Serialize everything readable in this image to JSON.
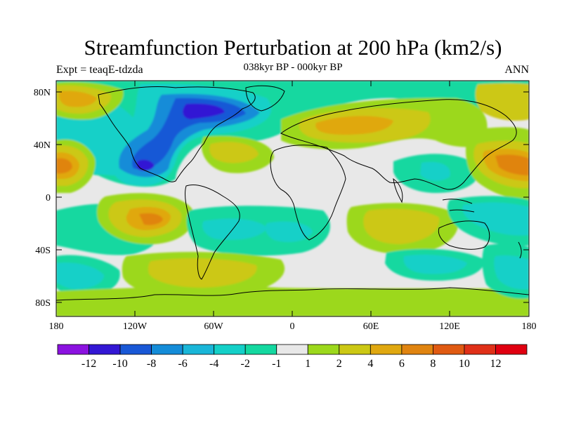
{
  "title": "Streamfunction Perturbation at 200 hPa (km2/s)",
  "left_label": "Expt = teaqE-tdzda",
  "center_label": "038kyr BP - 000kyr BP",
  "right_label": "ANN",
  "lat_ticks": [
    "80N",
    "40N",
    "0",
    "40S",
    "80S"
  ],
  "lon_ticks": [
    "180",
    "120W",
    "60W",
    "0",
    "60E",
    "120E",
    "180"
  ],
  "colorbar": {
    "labels": [
      "-12",
      "-10",
      "-8",
      "-6",
      "-4",
      "-2",
      "-1",
      "1",
      "2",
      "4",
      "6",
      "8",
      "10",
      "12"
    ],
    "colors": [
      "#8b12e0",
      "#3317d4",
      "#1958d6",
      "#148cd8",
      "#19b6d8",
      "#14d0c8",
      "#14d8a0",
      "#e8e8e8",
      "#9cd81c",
      "#ccc814",
      "#e0a810",
      "#e08410",
      "#e05a12",
      "#e03018",
      "#e00010"
    ]
  }
}
